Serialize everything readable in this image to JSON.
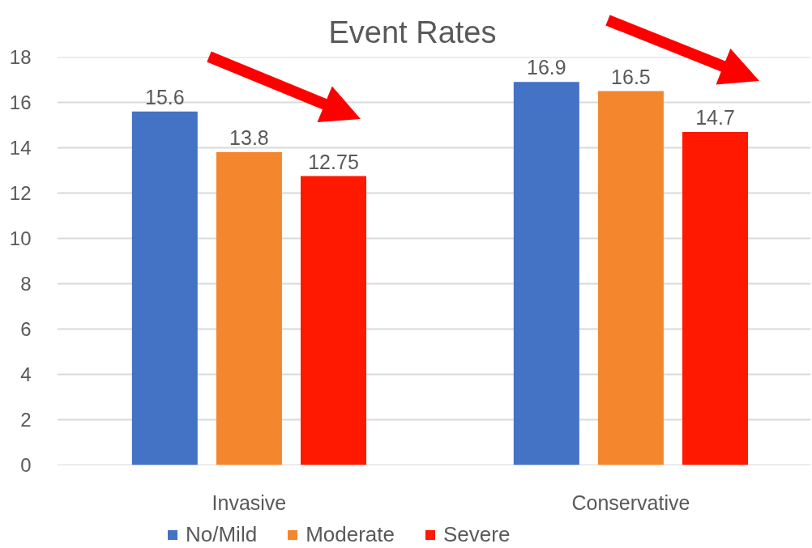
{
  "chart_data": {
    "type": "bar",
    "title": "Event Rates",
    "categories": [
      "Invasive",
      "Conservative"
    ],
    "series": [
      {
        "name": "No/Mild",
        "color": "#4472c4",
        "values": [
          15.6,
          16.9
        ]
      },
      {
        "name": "Moderate",
        "color": "#f4862e",
        "values": [
          13.8,
          16.5
        ]
      },
      {
        "name": "Severe",
        "color": "#ff1900",
        "values": [
          12.75,
          14.7
        ]
      }
    ],
    "ylim": [
      0,
      18
    ],
    "yticks": [
      0,
      2,
      4,
      6,
      8,
      10,
      12,
      14,
      16,
      18
    ],
    "grid": "y",
    "legend": "bottom",
    "data_labels": true
  }
}
